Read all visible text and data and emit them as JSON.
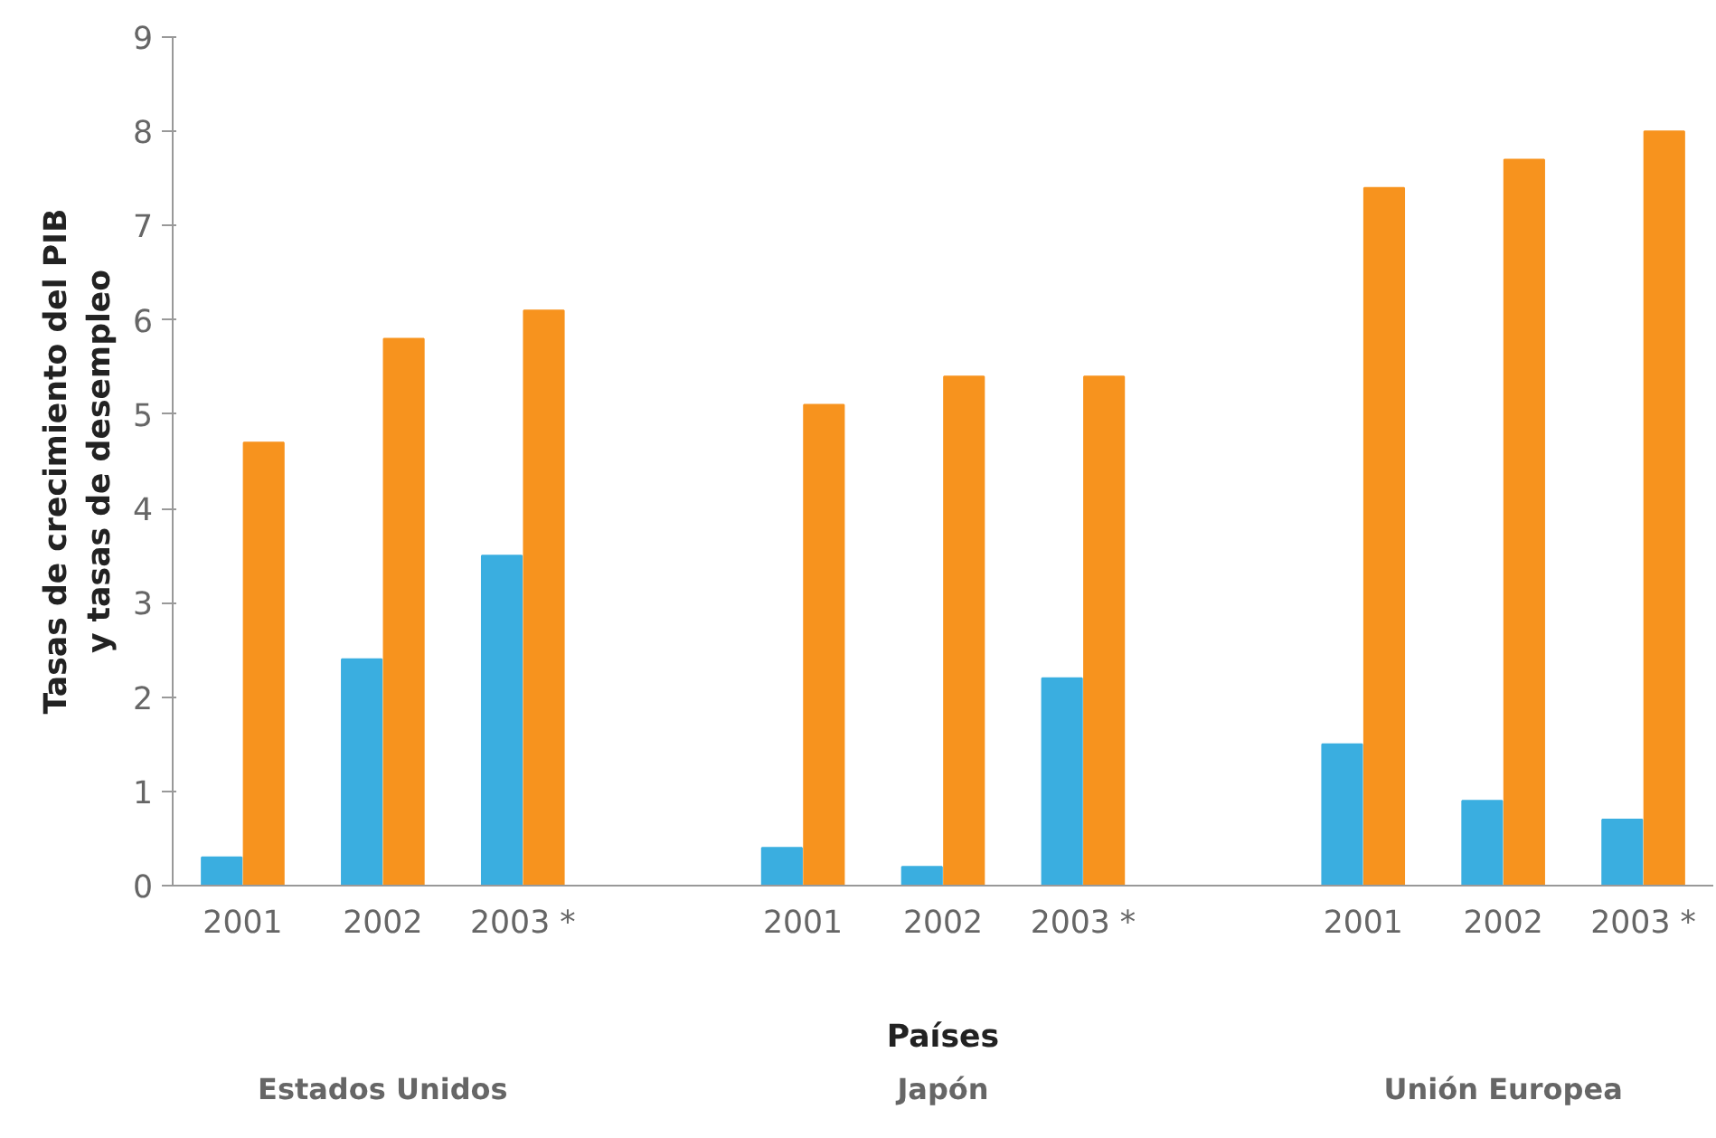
{
  "chart_data": {
    "type": "bar",
    "xlabel": "Países",
    "ylabel": "Tasas de crecimiento del PIB\ny tasas de desempleo",
    "categories": [
      "2001",
      "2002",
      "2003 *",
      null,
      "2001",
      "2002",
      "2003 *",
      null,
      "2001",
      "2002",
      "2003 *"
    ],
    "series": [
      {
        "color": "#3aaee0",
        "values": [
          0.3,
          2.4,
          3.5,
          null,
          0.4,
          0.2,
          2.2,
          null,
          1.5,
          0.9,
          0.7
        ]
      },
      {
        "color": "#f7931e",
        "values": [
          4.7,
          5.8,
          6.1,
          null,
          5.1,
          5.4,
          5.4,
          null,
          7.4,
          7.7,
          8.0
        ]
      }
    ],
    "ylim": [
      0,
      9
    ],
    "yticks": [
      0,
      1,
      2,
      3,
      4,
      5,
      6,
      7,
      8,
      9
    ],
    "grid": false,
    "annotations": [
      "Estados Unidos",
      "Japón",
      "Unión Europea"
    ]
  }
}
